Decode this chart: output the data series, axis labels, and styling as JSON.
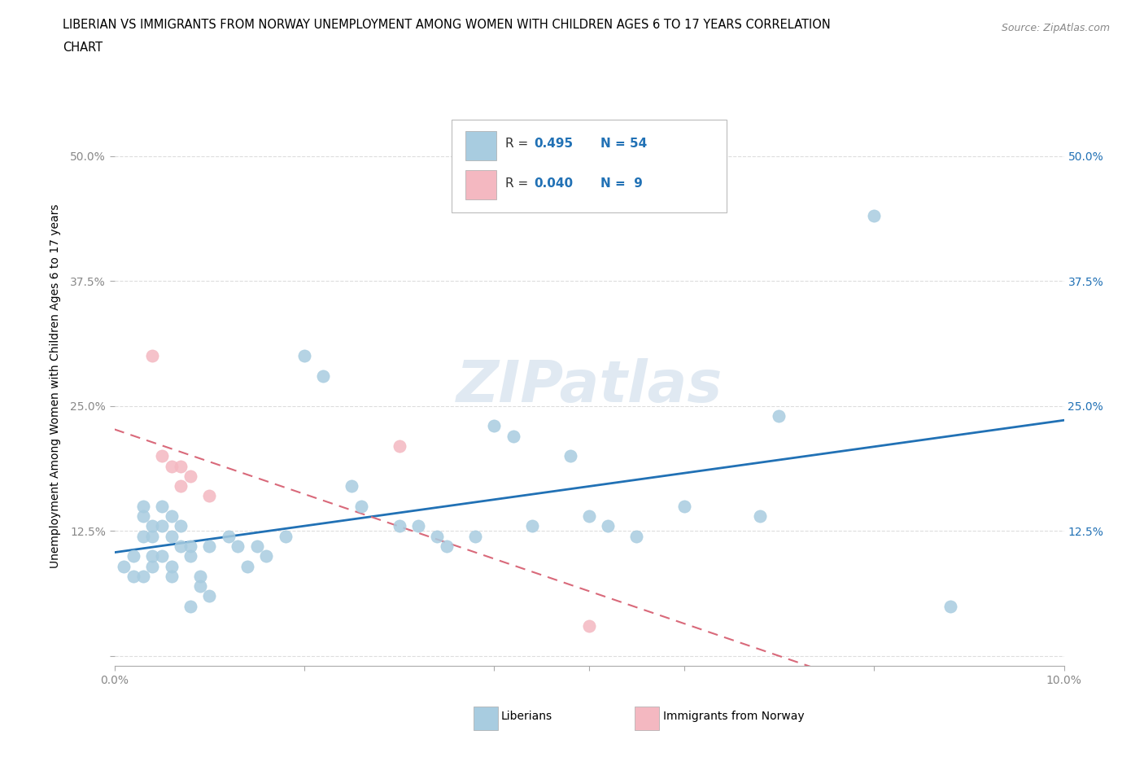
{
  "title_line1": "LIBERIAN VS IMMIGRANTS FROM NORWAY UNEMPLOYMENT AMONG WOMEN WITH CHILDREN AGES 6 TO 17 YEARS CORRELATION",
  "title_line2": "CHART",
  "source": "Source: ZipAtlas.com",
  "ylabel": "Unemployment Among Women with Children Ages 6 to 17 years",
  "xlim": [
    0.0,
    0.1
  ],
  "ylim": [
    -0.01,
    0.55
  ],
  "yticks": [
    0.0,
    0.125,
    0.25,
    0.375,
    0.5
  ],
  "ytick_labels": [
    "",
    "12.5%",
    "25.0%",
    "37.5%",
    "50.0%"
  ],
  "ytick_labels_right": [
    "",
    "12.5%",
    "25.0%",
    "37.5%",
    "50.0%"
  ],
  "xticks": [
    0.0,
    0.02,
    0.04,
    0.05,
    0.06,
    0.08,
    0.1
  ],
  "xtick_labels": [
    "0.0%",
    "",
    "",
    "",
    "",
    "",
    "10.0%"
  ],
  "legend_r1_val": "0.495",
  "legend_n1_val": "54",
  "legend_r2_val": "0.040",
  "legend_n2_val": " 9",
  "legend_label1": "Liberians",
  "legend_label2": "Immigrants from Norway",
  "blue_color": "#a8cce0",
  "pink_color": "#f4b8c1",
  "blue_line_color": "#2171b5",
  "pink_line_color": "#d9697a",
  "blue_scatter": [
    [
      0.001,
      0.09
    ],
    [
      0.002,
      0.08
    ],
    [
      0.002,
      0.1
    ],
    [
      0.003,
      0.08
    ],
    [
      0.003,
      0.12
    ],
    [
      0.003,
      0.14
    ],
    [
      0.003,
      0.15
    ],
    [
      0.004,
      0.12
    ],
    [
      0.004,
      0.13
    ],
    [
      0.004,
      0.09
    ],
    [
      0.004,
      0.1
    ],
    [
      0.005,
      0.15
    ],
    [
      0.005,
      0.13
    ],
    [
      0.005,
      0.1
    ],
    [
      0.006,
      0.14
    ],
    [
      0.006,
      0.12
    ],
    [
      0.006,
      0.09
    ],
    [
      0.006,
      0.08
    ],
    [
      0.007,
      0.13
    ],
    [
      0.007,
      0.11
    ],
    [
      0.008,
      0.11
    ],
    [
      0.008,
      0.1
    ],
    [
      0.008,
      0.05
    ],
    [
      0.009,
      0.07
    ],
    [
      0.009,
      0.08
    ],
    [
      0.01,
      0.11
    ],
    [
      0.01,
      0.06
    ],
    [
      0.012,
      0.12
    ],
    [
      0.013,
      0.11
    ],
    [
      0.014,
      0.09
    ],
    [
      0.015,
      0.11
    ],
    [
      0.016,
      0.1
    ],
    [
      0.018,
      0.12
    ],
    [
      0.02,
      0.3
    ],
    [
      0.022,
      0.28
    ],
    [
      0.025,
      0.17
    ],
    [
      0.026,
      0.15
    ],
    [
      0.03,
      0.13
    ],
    [
      0.032,
      0.13
    ],
    [
      0.034,
      0.12
    ],
    [
      0.035,
      0.11
    ],
    [
      0.038,
      0.12
    ],
    [
      0.04,
      0.23
    ],
    [
      0.042,
      0.22
    ],
    [
      0.044,
      0.13
    ],
    [
      0.048,
      0.2
    ],
    [
      0.05,
      0.14
    ],
    [
      0.052,
      0.13
    ],
    [
      0.055,
      0.12
    ],
    [
      0.06,
      0.15
    ],
    [
      0.068,
      0.14
    ],
    [
      0.07,
      0.24
    ],
    [
      0.08,
      0.44
    ],
    [
      0.088,
      0.05
    ]
  ],
  "pink_scatter": [
    [
      0.004,
      0.3
    ],
    [
      0.005,
      0.2
    ],
    [
      0.006,
      0.19
    ],
    [
      0.007,
      0.19
    ],
    [
      0.007,
      0.17
    ],
    [
      0.008,
      0.18
    ],
    [
      0.01,
      0.16
    ],
    [
      0.03,
      0.21
    ],
    [
      0.05,
      0.03
    ]
  ],
  "watermark": "ZIPatlas",
  "background_color": "#ffffff",
  "grid_color": "#dddddd"
}
